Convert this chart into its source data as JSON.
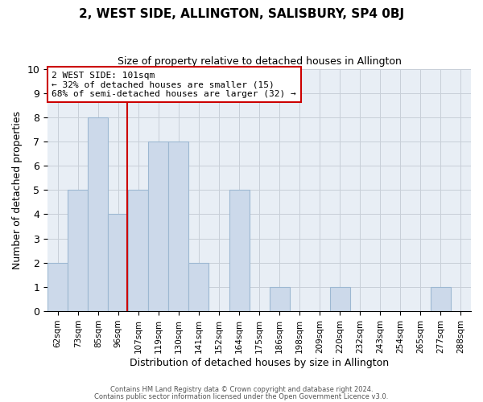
{
  "title": "2, WEST SIDE, ALLINGTON, SALISBURY, SP4 0BJ",
  "subtitle": "Size of property relative to detached houses in Allington",
  "xlabel": "Distribution of detached houses by size in Allington",
  "ylabel": "Number of detached properties",
  "bin_labels": [
    "62sqm",
    "73sqm",
    "85sqm",
    "96sqm",
    "107sqm",
    "119sqm",
    "130sqm",
    "141sqm",
    "152sqm",
    "164sqm",
    "175sqm",
    "186sqm",
    "198sqm",
    "209sqm",
    "220sqm",
    "232sqm",
    "243sqm",
    "254sqm",
    "265sqm",
    "277sqm",
    "288sqm"
  ],
  "bin_values": [
    62,
    73,
    85,
    96,
    107,
    119,
    130,
    141,
    152,
    164,
    175,
    186,
    198,
    209,
    220,
    232,
    243,
    254,
    265,
    277,
    288
  ],
  "bar_heights": [
    2,
    5,
    8,
    4,
    5,
    7,
    7,
    2,
    0,
    5,
    0,
    1,
    0,
    0,
    1,
    0,
    0,
    0,
    0,
    1,
    0
  ],
  "bar_color": "#ccd9ea",
  "bar_edgecolor": "#9db8d2",
  "grid_color": "#c8cfd8",
  "background_color": "#e8eef5",
  "property_size": 101,
  "redline_color": "#cc0000",
  "annotation_text": "2 WEST SIDE: 101sqm\n← 32% of detached houses are smaller (15)\n68% of semi-detached houses are larger (32) →",
  "annotation_box_color": "#cc0000",
  "ylim": [
    0,
    10
  ],
  "yticks": [
    0,
    1,
    2,
    3,
    4,
    5,
    6,
    7,
    8,
    9,
    10
  ],
  "footer_line1": "Contains HM Land Registry data © Crown copyright and database right 2024.",
  "footer_line2": "Contains public sector information licensed under the Open Government Licence v3.0.",
  "title_fontsize": 11,
  "subtitle_fontsize": 9
}
